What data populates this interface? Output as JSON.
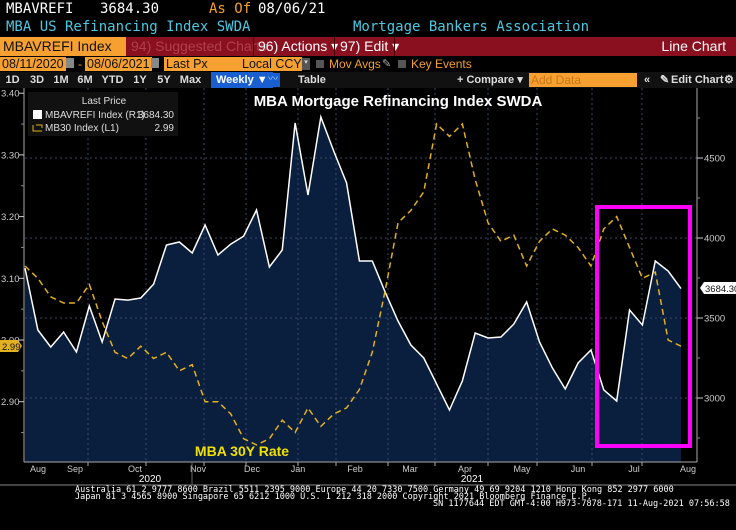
{
  "header": {
    "ticker": "MBAVREFI",
    "last_value": "3684.30",
    "as_of_label": "As Of",
    "as_of_date": "08/06/21",
    "description": "MBA US Refinancing Index SWDA",
    "source": "Mortgage Bankers Association"
  },
  "menu": {
    "security": "MBAVREFI Index",
    "suggested": "94) Suggested Charts",
    "actions": "96) Actions ▾",
    "edit": "97) Edit ▾",
    "chart_type": "Line Chart"
  },
  "controls": {
    "start_date": "08/11/2020",
    "end_date": "08/06/2021",
    "field": "Last Px",
    "currency": "Local CCY",
    "mov_avgs": "Mov Avgs",
    "key_events": "Key Events"
  },
  "toolbar": {
    "periods": [
      "1D",
      "3D",
      "1M",
      "6M",
      "YTD",
      "1Y",
      "5Y",
      "Max"
    ],
    "frequency": "Weekly ▼",
    "table": "Table",
    "compare": "+ Compare ▾",
    "add_data_placeholder": "Add Data",
    "collapse": "«",
    "edit_chart": "Edit Chart",
    "gear": "⚙"
  },
  "legend": {
    "header": "Last Price",
    "items": [
      {
        "name": "MBAVREFI Index  (R1)",
        "value": "3684.30",
        "color": "#ffffff",
        "style": "solid-fill"
      },
      {
        "name": "MB30 Index  (L1)",
        "value": "2.99",
        "color": "#e0b020",
        "style": "dashed"
      }
    ]
  },
  "annotations": {
    "highlight_box_color": "#ff00ff",
    "mb30_label": "MBA 30Y Rate",
    "left_last_tag": "2.99",
    "right_last_tag": "3684.30"
  },
  "footer": {
    "line1": "Australia 61 2 9777 8600 Brazil 5511 2395 9000 Europe 44 20 7330 7500 Germany 49 69 9204 1210 Hong Kong 852 2977 6000",
    "line2": "Japan 81 3 4565 8900       Singapore 65 6212 1000       U.S. 1 212 318 2000          Copyright 2021 Bloomberg Finance L.P.",
    "line3": "SN 1177644 EDT  GMT-4:00 H973-7878-171 11-Aug-2021 07:56:58"
  },
  "chart_data": {
    "type": "line",
    "title": "MBA Mortgage Refinancing Index SWDA",
    "x_tick_labels": [
      "Aug",
      "Sep",
      "Oct",
      "Nov",
      "Dec",
      "Jan",
      "Feb",
      "Mar",
      "Apr",
      "May",
      "Jun",
      "Jul",
      "Aug"
    ],
    "year_labels": [
      "2020",
      "2021"
    ],
    "frequency": "weekly",
    "left_axis": {
      "series": "MB30 Index",
      "ylim": [
        2.82,
        3.41
      ],
      "ticks": [
        "3.40",
        "3.30",
        "3.20",
        "3.10",
        "3.00",
        "2.90"
      ]
    },
    "right_axis": {
      "series": "MBAVREFI Index",
      "ylim": [
        2620,
        4800
      ],
      "ticks": [
        "4500",
        "4000",
        "3500",
        "3000"
      ]
    },
    "grid": true,
    "legend_position": "top-left",
    "series": [
      {
        "name": "MBAVREFI Index",
        "axis": "right",
        "style": "area",
        "color": "#ffffff",
        "fill": "#0a1f3d",
        "values": [
          3812,
          3425,
          3319,
          3412,
          3288,
          3575,
          3350,
          3619,
          3612,
          3625,
          3712,
          3956,
          3975,
          3906,
          4081,
          3894,
          3962,
          4012,
          4175,
          3819,
          3925,
          4719,
          4269,
          4756,
          4544,
          4344,
          3856,
          3856,
          3662,
          3481,
          3331,
          3250,
          3088,
          2925,
          3106,
          3406,
          3375,
          3381,
          3462,
          3600,
          3350,
          3188,
          3056,
          3219,
          3300,
          3050,
          2981,
          3550,
          3456,
          3856,
          3794,
          3684
        ]
      },
      {
        "name": "MB30 Index",
        "axis": "left",
        "style": "dashed",
        "color": "#e0b020",
        "values": [
          3.12,
          3.1,
          3.07,
          3.06,
          3.06,
          3.09,
          3.03,
          2.98,
          2.97,
          2.99,
          2.97,
          2.98,
          2.95,
          2.96,
          2.9,
          2.9,
          2.88,
          2.84,
          2.83,
          2.84,
          2.87,
          2.85,
          2.89,
          2.86,
          2.88,
          2.89,
          2.92,
          2.98,
          3.08,
          3.19,
          3.21,
          3.24,
          3.35,
          3.33,
          3.35,
          3.26,
          3.19,
          3.16,
          3.17,
          3.12,
          3.16,
          3.18,
          3.17,
          3.15,
          3.12,
          3.18,
          3.2,
          3.15,
          3.1,
          3.11,
          3.0,
          2.99
        ]
      }
    ]
  }
}
